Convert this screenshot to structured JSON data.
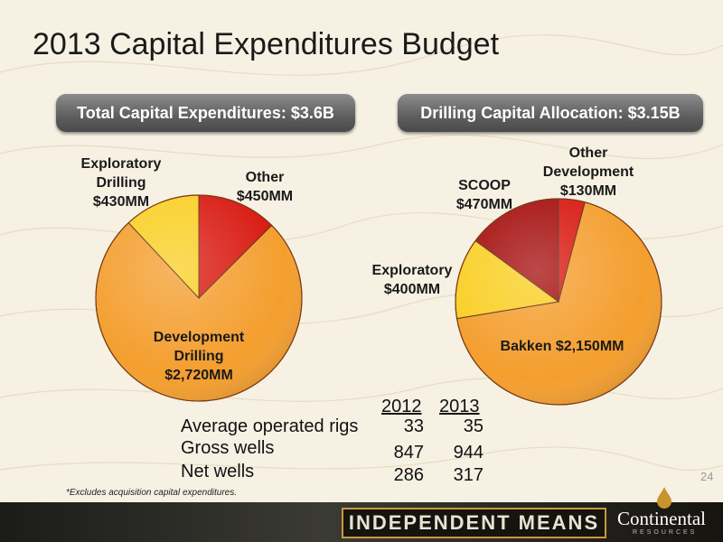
{
  "title": "2013 Capital Expenditures Budget",
  "pill_left": "Total Capital Expenditures: $3.6B",
  "pill_right": "Drilling Capital Allocation: $3.15B",
  "chart_data": [
    {
      "type": "pie",
      "slices": [
        {
          "label": "Other",
          "value_text": "$450MM",
          "value": 450
        },
        {
          "label": "Development Drilling",
          "value_text": "$2,720MM",
          "value": 2720
        },
        {
          "label": "Exploratory Drilling",
          "value_text": "$430MM",
          "value": 430
        }
      ],
      "colors": [
        "#d8180f",
        "#f49e2e",
        "#f9cf23"
      ]
    },
    {
      "type": "pie",
      "slices": [
        {
          "label": "Other Development",
          "value_text": "$130MM",
          "value": 130
        },
        {
          "label": "Bakken",
          "value_text": "$2,150MM",
          "value": 2150
        },
        {
          "label": "Exploratory",
          "value_text": "$400MM",
          "value": 400
        },
        {
          "label": "SCOOP",
          "value_text": "$470MM",
          "value": 470
        }
      ],
      "colors": [
        "#d8180f",
        "#f49e2e",
        "#f9cf23",
        "#a50d0d"
      ]
    }
  ],
  "labels": {
    "l_other": [
      "Other",
      "$450MM"
    ],
    "l_dev": [
      "Development",
      "Drilling",
      "$2,720MM"
    ],
    "l_expl": [
      "Exploratory",
      "Drilling",
      "$430MM"
    ],
    "r_otherdev": [
      "Other",
      "Development",
      "$130MM"
    ],
    "r_scoop": [
      "SCOOP",
      "$470MM"
    ],
    "r_expl": [
      "Exploratory",
      "$400MM"
    ],
    "r_bakken": "Bakken $2,150MM"
  },
  "stats": {
    "years": [
      "2012",
      "2013"
    ],
    "rows": [
      {
        "label": "Average operated rigs",
        "v2012": "33",
        "v2013": "35"
      },
      {
        "label": "Gross wells",
        "v2012": "847",
        "v2013": "944"
      },
      {
        "label": "Net wells",
        "v2012": "286",
        "v2013": "317"
      }
    ]
  },
  "page_number": "24",
  "footnote": "*Excludes acquisition capital expenditures.",
  "footer": {
    "banner": "INDEPENDENT MEANS",
    "brand": "Continental",
    "brand_sub": "RESOURCES"
  }
}
